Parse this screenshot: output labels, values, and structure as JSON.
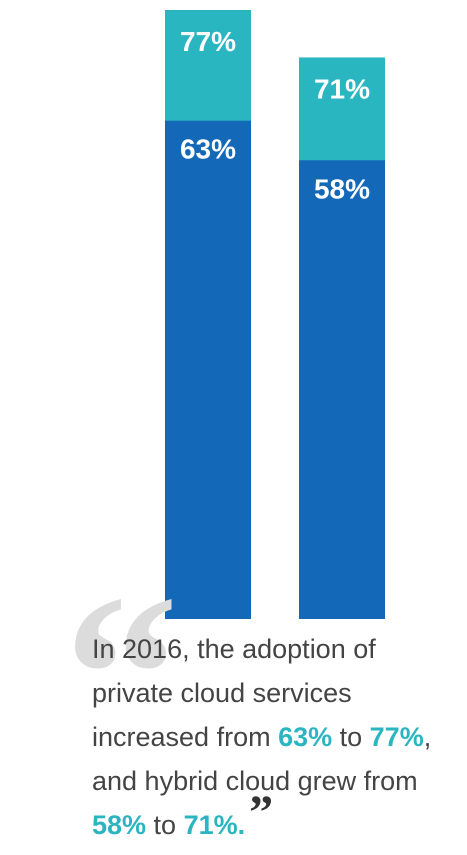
{
  "chart_data": {
    "type": "bar",
    "stacked_overlay": true,
    "categories": [
      "",
      ""
    ],
    "series": [
      {
        "values": [
          63,
          58
        ],
        "color": "#1468b8"
      },
      {
        "values": [
          77,
          71
        ],
        "color": "#29b6c1"
      }
    ],
    "value_labels": {
      "base": [
        "63%",
        "58%"
      ],
      "top": [
        "77%",
        "71%"
      ]
    },
    "ylim": [
      0,
      77
    ],
    "grid": false
  },
  "quote": {
    "p1": "In 2016, the adoption of private cloud services increased from ",
    "h1": "63%",
    "p2": " to ",
    "h2": "77%",
    "p3": ", and hybrid cloud grew from ",
    "h3": "58%",
    "p4": " to ",
    "h4": "71%.",
    "open_mark": "“",
    "close_mark": "”"
  },
  "colors": {
    "highlight": "#2bb5c1",
    "text": "#444444"
  }
}
